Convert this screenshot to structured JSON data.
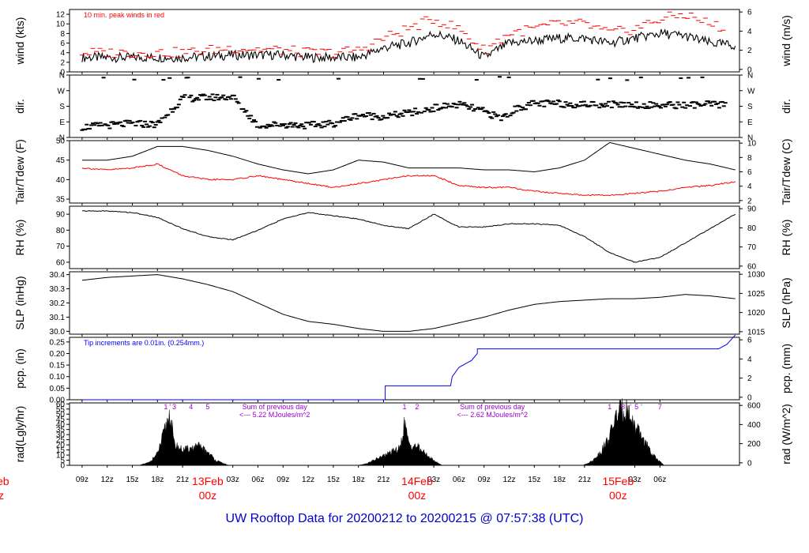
{
  "colors": {
    "wind": "#000000",
    "peak": "#ff0000",
    "tdew": "#ff0000",
    "pcp": "#0000ff",
    "note_pcp": "#0000ff",
    "note_rad": "#9900cc",
    "date": "#ff0000",
    "title": "#0000cc"
  },
  "title": "UW Rooftop Data for 20200212  to  20200215 @ 07:57:38  (UTC)",
  "left_cut_labels": [
    "eb",
    "z"
  ],
  "chart_data": [
    {
      "type": "line",
      "id": "wind",
      "ylabel_left": "wind (kts)",
      "ylabel_right": "wind (m/s)",
      "ylim": [
        0,
        13
      ],
      "yticks_left": [
        "0",
        "2",
        "4",
        "6",
        "8",
        "10",
        "12"
      ],
      "yticks_right": [
        "0",
        "2",
        "4",
        "6"
      ],
      "annotation": "10 min. peak winds in red",
      "series": [
        {
          "name": "wind",
          "x": [
            0,
            6,
            12,
            18,
            24,
            27,
            30,
            33,
            36,
            39,
            42,
            45,
            48,
            51,
            54,
            57,
            60,
            63,
            66,
            69,
            72,
            75,
            78
          ],
          "values": [
            3,
            3,
            3,
            3.5,
            3.5,
            3,
            3,
            3,
            5,
            6,
            8,
            6.5,
            3,
            6,
            6.5,
            7,
            7,
            6,
            7,
            8,
            7.5,
            6,
            5.5
          ]
        },
        {
          "name": "peak",
          "x": [
            0,
            6,
            12,
            18,
            24,
            27,
            30,
            33,
            36,
            39,
            42,
            45,
            48,
            51,
            54,
            57,
            60,
            63,
            66,
            69,
            72,
            75,
            78
          ],
          "values": [
            4,
            4,
            4,
            5,
            4.5,
            4,
            4,
            4.5,
            7,
            9,
            11,
            9,
            4.5,
            8,
            9,
            10,
            10,
            8,
            9,
            11,
            12,
            10,
            8.5
          ]
        }
      ]
    },
    {
      "type": "scatter",
      "id": "dir",
      "ylabel_left": "dir.",
      "ylabel_right": "dir.",
      "yticks_left": [
        "N",
        "W",
        "S",
        "E",
        "N"
      ],
      "yticks_right": [
        "N",
        "W",
        "S",
        "E",
        "N"
      ],
      "ylim": [
        0,
        360
      ],
      "series": [
        {
          "name": "direction",
          "x": [
            0,
            3,
            6,
            9,
            12,
            15,
            18,
            21,
            24,
            27,
            30,
            33,
            36,
            39,
            42,
            45,
            48,
            50,
            52,
            54,
            57,
            60,
            63,
            66,
            69,
            72,
            75,
            78
          ],
          "values": [
            60,
            70,
            80,
            75,
            225,
            230,
            235,
            70,
            75,
            70,
            80,
            130,
            120,
            140,
            170,
            190,
            150,
            110,
            170,
            195,
            195,
            190,
            192,
            190,
            185,
            188,
            190,
            185
          ]
        }
      ]
    },
    {
      "type": "line",
      "id": "temp",
      "ylabel_left": "Tair/Tdew (F)",
      "ylabel_right": "Tair/Tdew (C)",
      "ylim": [
        34,
        50
      ],
      "yticks_left": [
        "35",
        "40",
        "45",
        "50"
      ],
      "yticks_right": [
        "2",
        "4",
        "6",
        "8",
        "10"
      ],
      "series": [
        {
          "name": "tair",
          "x": [
            0,
            3,
            6,
            9,
            12,
            15,
            18,
            21,
            24,
            27,
            30,
            33,
            36,
            39,
            42,
            45,
            48,
            51,
            54,
            57,
            60,
            63,
            66,
            69,
            72,
            75,
            78
          ],
          "values": [
            45,
            45,
            46,
            48.5,
            48.5,
            47.5,
            46,
            44,
            42.5,
            41.5,
            42.5,
            45,
            44.5,
            43,
            43,
            43,
            42.5,
            42.5,
            42,
            43,
            45,
            49.5,
            48,
            46.5,
            45,
            44,
            42.5
          ]
        },
        {
          "name": "tdew",
          "x": [
            0,
            3,
            6,
            9,
            12,
            15,
            18,
            21,
            24,
            27,
            30,
            33,
            36,
            39,
            42,
            45,
            48,
            51,
            54,
            57,
            60,
            63,
            66,
            69,
            72,
            75,
            78
          ],
          "values": [
            43,
            42.5,
            43,
            44,
            41,
            40,
            40,
            41,
            40,
            39,
            38,
            39,
            40,
            41,
            41,
            38.5,
            38,
            38,
            37,
            36.5,
            36,
            36,
            36.5,
            37,
            38,
            38.5,
            39.5
          ]
        }
      ]
    },
    {
      "type": "line",
      "id": "rh",
      "ylabel_left": "RH (%)",
      "ylabel_right": "RH (%)",
      "ylim": [
        56,
        95
      ],
      "yticks_left": [
        "60",
        "70",
        "80",
        "90"
      ],
      "yticks_right": [
        "60",
        "70",
        "80",
        "90"
      ],
      "series": [
        {
          "name": "rh",
          "x": [
            0,
            3,
            6,
            9,
            12,
            15,
            18,
            21,
            24,
            27,
            30,
            33,
            36,
            39,
            42,
            45,
            48,
            51,
            54,
            57,
            60,
            63,
            66,
            69,
            72,
            75,
            78
          ],
          "values": [
            92,
            92,
            91,
            88,
            81,
            76,
            74,
            80,
            87,
            91,
            89,
            87,
            83,
            81,
            90,
            82,
            82,
            84,
            84,
            83,
            76,
            66,
            60,
            63,
            72,
            81,
            90
          ]
        }
      ]
    },
    {
      "type": "line",
      "id": "slp",
      "ylabel_left": "SLP (inHg)",
      "ylabel_right": "SLP (hPa)",
      "ylim": [
        29.98,
        30.42
      ],
      "yticks_left": [
        "30.0",
        "30.1",
        "30.2",
        "30.3",
        "30.4"
      ],
      "yticks_right": [
        "1015",
        "1020",
        "1025",
        "1030"
      ],
      "series": [
        {
          "name": "slp",
          "x": [
            0,
            3,
            6,
            9,
            12,
            15,
            18,
            21,
            24,
            27,
            30,
            33,
            36,
            39,
            42,
            45,
            48,
            51,
            54,
            57,
            60,
            63,
            66,
            69,
            72,
            75,
            78
          ],
          "values": [
            30.36,
            30.38,
            30.39,
            30.4,
            30.37,
            30.33,
            30.28,
            30.2,
            30.12,
            30.07,
            30.05,
            30.02,
            30.0,
            30.0,
            30.02,
            30.06,
            30.1,
            30.15,
            30.19,
            30.21,
            30.22,
            30.23,
            30.23,
            30.24,
            30.26,
            30.25,
            30.23
          ]
        }
      ]
    },
    {
      "type": "line",
      "id": "pcp",
      "ylabel_left": "pcp. (in)",
      "ylabel_right": "pcp. (mm)",
      "ylim": [
        0,
        0.27
      ],
      "yticks_left": [
        "0.00",
        "0.05",
        "0.10",
        "0.15",
        "0.20",
        "0.25"
      ],
      "yticks_right": [
        "0",
        "2",
        "4",
        "6"
      ],
      "annotation": "Tip increments are 0.01in. (0.254mm.)",
      "series": [
        {
          "name": "pcp",
          "x": [
            0,
            36.2,
            36.2,
            44,
            44.2,
            44.6,
            45,
            46,
            46.5,
            47.2,
            47.2,
            76,
            76.5,
            77,
            77.5,
            78
          ],
          "values": [
            0,
            0,
            0.06,
            0.06,
            0.1,
            0.12,
            0.14,
            0.16,
            0.17,
            0.2,
            0.22,
            0.22,
            0.23,
            0.24,
            0.26,
            0.28
          ]
        }
      ]
    },
    {
      "type": "area",
      "id": "rad",
      "ylabel_left": "rad(Lgly/hr)",
      "ylabel_right": "rad (W/m^2)",
      "ylim": [
        0,
        61
      ],
      "yticks_left": [
        "0",
        "5",
        "10",
        "15",
        "20",
        "25",
        "30",
        "35",
        "40",
        "45",
        "50",
        "55",
        "60"
      ],
      "yticks_right": [
        "0",
        "200",
        "400",
        "600"
      ],
      "annotations": [
        {
          "x": 23,
          "line1": "Sum of previous day",
          "line2": "<--- 5.22 MJoules/m^2"
        },
        {
          "x": 49,
          "line1": "Sum of previous day",
          "line2": "<--- 2.62 MJoules/m^2"
        }
      ],
      "peak_markers": [
        {
          "x": 10.0,
          "label": "1"
        },
        {
          "x": 10.5,
          "label": "'"
        },
        {
          "x": 11.0,
          "label": "3"
        },
        {
          "x": 13.0,
          "label": "4"
        },
        {
          "x": 15.0,
          "label": "5"
        },
        {
          "x": 38.5,
          "label": "1"
        },
        {
          "x": 40.0,
          "label": "2"
        },
        {
          "x": 63.0,
          "label": "1"
        },
        {
          "x": 64.2,
          "label": "'"
        },
        {
          "x": 64.6,
          "label": "3"
        },
        {
          "x": 65.5,
          "label": "'"
        },
        {
          "x": 66.2,
          "label": "5"
        },
        {
          "x": 66.8,
          "label": "'"
        },
        {
          "x": 69.0,
          "label": "7"
        }
      ],
      "series": [
        {
          "name": "day1",
          "x": [
            6.8,
            8,
            9,
            10,
            10.5,
            11,
            12,
            13,
            14,
            15,
            16,
            17.5
          ],
          "values": [
            0,
            3,
            12,
            40,
            55,
            22,
            16,
            18,
            20,
            14,
            5,
            0
          ]
        },
        {
          "name": "day2",
          "x": [
            33,
            34,
            35,
            36,
            37,
            38,
            38.5,
            39,
            40,
            41,
            42,
            43
          ],
          "values": [
            0,
            2,
            6,
            10,
            14,
            18,
            45,
            22,
            20,
            12,
            5,
            0
          ]
        },
        {
          "name": "day3",
          "x": [
            59.8,
            61,
            62,
            63,
            63.5,
            64,
            64.5,
            65,
            65.5,
            66,
            67,
            68,
            69.5
          ],
          "values": [
            0,
            5,
            15,
            30,
            45,
            55,
            58,
            60,
            50,
            40,
            28,
            12,
            0
          ]
        }
      ]
    }
  ],
  "x_axis": {
    "xlim": [
      -1.5,
      78.5
    ],
    "ticks": [
      {
        "x": 0,
        "label": "09z"
      },
      {
        "x": 3,
        "label": "12z"
      },
      {
        "x": 6,
        "label": "15z"
      },
      {
        "x": 9,
        "label": "18z"
      },
      {
        "x": 12,
        "label": "21z"
      },
      {
        "x": 18,
        "label": "03z"
      },
      {
        "x": 21,
        "label": "06z"
      },
      {
        "x": 24,
        "label": "09z"
      },
      {
        "x": 27,
        "label": "12z"
      },
      {
        "x": 30,
        "label": "15z"
      },
      {
        "x": 33,
        "label": "18z"
      },
      {
        "x": 36,
        "label": "21z"
      },
      {
        "x": 42,
        "label": "03z"
      },
      {
        "x": 45,
        "label": "06z"
      },
      {
        "x": 48,
        "label": "09z"
      },
      {
        "x": 51,
        "label": "12z"
      },
      {
        "x": 54,
        "label": "15z"
      },
      {
        "x": 57,
        "label": "18z"
      },
      {
        "x": 60,
        "label": "21z"
      },
      {
        "x": 66,
        "label": "03z"
      },
      {
        "x": 69,
        "label": "06z"
      }
    ],
    "dates": [
      {
        "x": 15,
        "label": "13Feb",
        "sub": "00z"
      },
      {
        "x": 40,
        "label": "14Feb",
        "sub": "00z"
      },
      {
        "x": 64,
        "label": "15Feb",
        "sub": "00z"
      }
    ]
  }
}
